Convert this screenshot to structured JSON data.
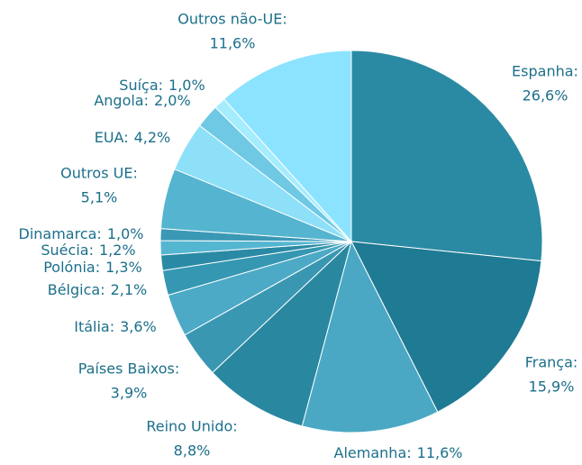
{
  "chart_data": {
    "type": "pie",
    "categories": [
      "Espanha:",
      "França:",
      "Alemanha:",
      "Reino Unido:",
      "Países Baixos:",
      "Itália:",
      "Bélgica:",
      "Polónia:",
      "Suécia:",
      "Dinamarca:",
      "Outros UE:",
      "EUA:",
      "Angola:",
      "Suíça:",
      "Outros não-UE:"
    ],
    "values": [
      26.6,
      15.9,
      11.6,
      8.8,
      3.9,
      3.6,
      2.1,
      1.3,
      1.2,
      1.0,
      5.1,
      4.2,
      2.0,
      1.0,
      11.6
    ],
    "value_labels": [
      "26,6%",
      "15,9%",
      "11,6%",
      "8,8%",
      "3,9%",
      "3,6%",
      "2,1%",
      "1,3%",
      "1,2%",
      "1,0%",
      "5,1%",
      "4,2%",
      "2,0%",
      "1,0%",
      "11,6%"
    ],
    "colors": [
      "#2a8aa3",
      "#1f7a93",
      "#4aa8c4",
      "#2a87a0",
      "#3a97b2",
      "#4caac6",
      "#3597b2",
      "#2a8aa5",
      "#55b6d2",
      "#3a98b5",
      "#55b4d0",
      "#8de0f8",
      "#6fc8e4",
      "#a6ecff",
      "#8ce3ff"
    ]
  }
}
